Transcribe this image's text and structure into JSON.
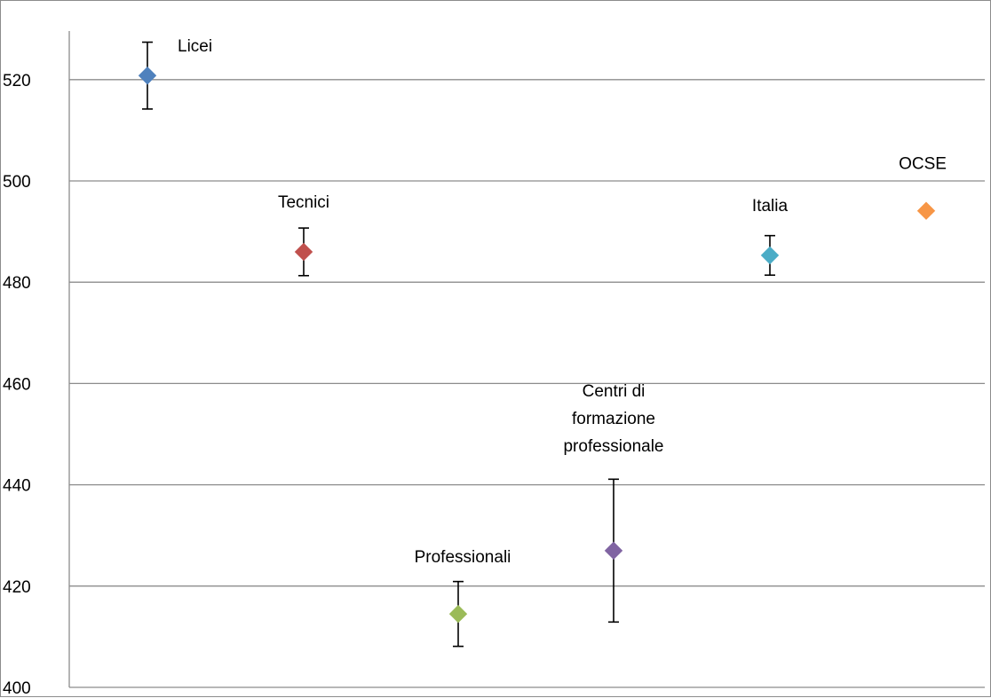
{
  "chart_data": {
    "type": "scatter",
    "title": "",
    "xlabel": "",
    "ylabel": "",
    "ylim": [
      400,
      530
    ],
    "yticks": [
      400,
      420,
      440,
      460,
      480,
      500,
      520
    ],
    "grid": true,
    "legend": "none",
    "points": [
      {
        "label": "Licei",
        "y": 520.8,
        "err_low": 514.2,
        "err_high": 527.4,
        "color": "#4f81bd",
        "label_lines": [
          "Licei"
        ]
      },
      {
        "label": "Tecnici",
        "y": 486.0,
        "err_low": 481.3,
        "err_high": 490.7,
        "color": "#c0504d",
        "label_lines": [
          "Tecnici"
        ]
      },
      {
        "label": "Professionali",
        "y": 414.5,
        "err_low": 408.1,
        "err_high": 420.9,
        "color": "#9bbb59",
        "label_lines": [
          "Professionali"
        ]
      },
      {
        "label": "Centri di formazione professionale",
        "y": 427.0,
        "err_low": 412.9,
        "err_high": 441.1,
        "color": "#8064a2",
        "label_lines": [
          "Centri di",
          "formazione",
          "professionale"
        ]
      },
      {
        "label": "Italia",
        "y": 485.3,
        "err_low": 481.4,
        "err_high": 489.2,
        "color": "#4bacc6",
        "label_lines": [
          "Italia"
        ]
      },
      {
        "label": "OCSE",
        "y": 494.1,
        "err_low": 493.6,
        "err_high": 494.6,
        "color": "#f79646",
        "label_lines": [
          "OCSE"
        ]
      }
    ]
  }
}
